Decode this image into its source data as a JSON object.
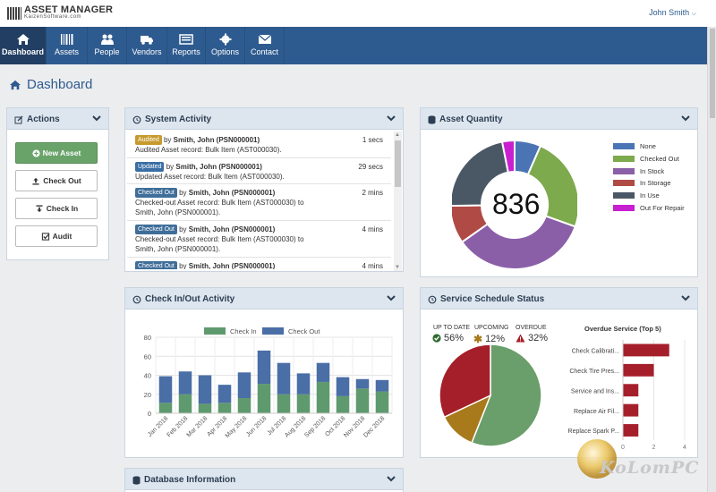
{
  "header": {
    "logo_title": "ASSET MANAGER",
    "logo_sub": "KaizenSoftware.com",
    "user": "John Smith"
  },
  "nav": [
    {
      "label": "Dashboard",
      "icon": "home-icon",
      "active": true
    },
    {
      "label": "Assets",
      "icon": "barcode-icon"
    },
    {
      "label": "People",
      "icon": "people-icon"
    },
    {
      "label": "Vendors",
      "icon": "truck-icon"
    },
    {
      "label": "Reports",
      "icon": "report-icon"
    },
    {
      "label": "Options",
      "icon": "gear-icon"
    },
    {
      "label": "Contact",
      "icon": "envelope-icon"
    }
  ],
  "page": {
    "title": "Dashboard"
  },
  "actions": {
    "title": "Actions",
    "buttons": [
      "New Asset",
      "Check Out",
      "Check In",
      "Audit"
    ]
  },
  "system_activity": {
    "title": "System Activity",
    "rows": [
      {
        "badge": "Audited",
        "badge_color": "#c79a2e",
        "by": "by",
        "who": "Smith, John (PSN000001)",
        "time": "1 secs",
        "detail": [
          "Audited Asset record: Bulk Item (AST000030)."
        ]
      },
      {
        "badge": "Updated",
        "badge_color": "#3a6ea5",
        "by": "by",
        "who": "Smith, John (PSN000001)",
        "time": "29 secs",
        "detail": [
          "Updated Asset record: Bulk Item (AST000030)."
        ]
      },
      {
        "badge": "Checked Out",
        "badge_color": "#3f6e99",
        "by": "by",
        "who": "Smith, John (PSN000001)",
        "time": "2 mins",
        "detail": [
          "Checked-out Asset record: Bulk Item (AST000030) to",
          "Smith, John (PSN000001)."
        ]
      },
      {
        "badge": "Checked Out",
        "badge_color": "#3f6e99",
        "by": "by",
        "who": "Smith, John (PSN000001)",
        "time": "4 mins",
        "detail": [
          "Checked-out Asset record: Bulk Item (AST000030) to",
          "Smith, John (PSN000001)."
        ]
      },
      {
        "badge": "Checked Out",
        "badge_color": "#3f6e99",
        "by": "by",
        "who": "Smith, John (PSN000001)",
        "time": "4 mins",
        "detail": []
      }
    ]
  },
  "asset_quantity": {
    "title": "Asset Quantity",
    "total": "836"
  },
  "checkinout": {
    "title": "Check In/Out Activity"
  },
  "service": {
    "title": "Service Schedule Status",
    "up_to_date_label": "UP TO DATE",
    "up_to_date_value": "56%",
    "upcoming_label": "UPCOMING",
    "upcoming_value": "12%",
    "overdue_label": "OVERDUE",
    "overdue_value": "32%",
    "overdue_title": "Overdue Service (Top 5)"
  },
  "database": {
    "title": "Database Information"
  },
  "watermark": {
    "text": "KoLomPC"
  },
  "chart_data": [
    {
      "type": "pie",
      "title": "Asset Quantity",
      "labels": [
        "None",
        "Checked Out",
        "In Stock",
        "In Storage",
        "In Use",
        "Out For Repair"
      ],
      "colors": [
        "#4a74b4",
        "#7daa4c",
        "#8a5fa8",
        "#b04a45",
        "#4a5866",
        "#c81fd0"
      ],
      "values": [
        55,
        200,
        290,
        80,
        185,
        26
      ]
    },
    {
      "type": "bar",
      "stacked": true,
      "legend": [
        "Check In",
        "Check Out"
      ],
      "colors": [
        "#5f9a6e",
        "#4a6ea6"
      ],
      "categories": [
        "Jan 2018",
        "Feb 2018",
        "Mar 2018",
        "Apr 2018",
        "May 2018",
        "Jun 2018",
        "Jul 2018",
        "Aug 2018",
        "Sep 2018",
        "Oct 2018",
        "Nov 2018",
        "Dec 2018"
      ],
      "series": [
        {
          "name": "Check In",
          "values": [
            11,
            20,
            10,
            11,
            16,
            31,
            20,
            20,
            33,
            18,
            26,
            23
          ]
        },
        {
          "name": "Check Out",
          "values": [
            28,
            24,
            30,
            19,
            27,
            35,
            33,
            22,
            20,
            20,
            10,
            12
          ]
        }
      ],
      "ylim": [
        0,
        80
      ],
      "yticks": [
        0,
        20,
        40,
        60,
        80
      ]
    },
    {
      "type": "pie",
      "title": "Service Schedule Status",
      "labels": [
        "UP TO DATE",
        "UPCOMING",
        "OVERDUE"
      ],
      "colors": [
        "#6a9e6a",
        "#a87a1c",
        "#a51f2a"
      ],
      "values": [
        56,
        12,
        32
      ]
    },
    {
      "type": "bar",
      "orientation": "horizontal",
      "title": "Overdue Service (Top 5)",
      "categories": [
        "Check Calibrati...",
        "Check Tire Pres...",
        "Service and Ins...",
        "Replace Air Fil...",
        "Replace Spark P..."
      ],
      "values": [
        3,
        2,
        1,
        1,
        1
      ],
      "xlim": [
        0,
        4
      ],
      "xticks": [
        0,
        2,
        4
      ],
      "color": "#a51f2a"
    }
  ]
}
